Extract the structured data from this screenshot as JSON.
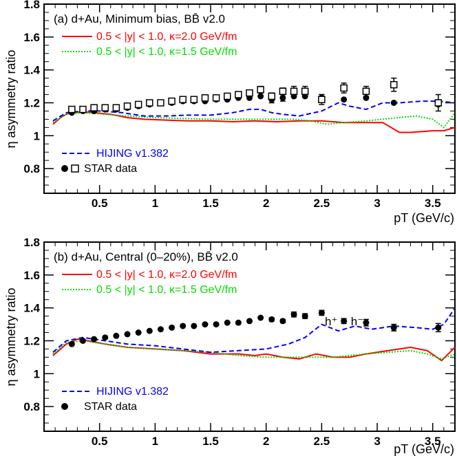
{
  "chart_data": [
    {
      "type": "scatter",
      "panel_title": "(a) d+Au, Minimum bias, BB̄ v2.0",
      "xlabel": "pT (GeV/c)",
      "ylabel": "η asymmetry ratio",
      "xlim": [
        0,
        3.7
      ],
      "ylim": [
        0.65,
        1.8
      ],
      "x_ticks": [
        "0.5",
        "1",
        "1.5",
        "2",
        "2.5",
        "3",
        "3.5"
      ],
      "y_ticks": [
        "0.8",
        "1",
        "1.2",
        "1.4",
        "1.6",
        "1.8"
      ],
      "annotation": "",
      "legend": [
        {
          "label": "0.5 < |y| < 1.0, κ=2.0 GeV/fm",
          "color": "#ff0000",
          "style": "solid"
        },
        {
          "label": "0.5 < |y| < 1.0, κ=1.5 GeV/fm",
          "color": "#00dd00",
          "style": "dotted"
        },
        {
          "label": "HIJING v1.382",
          "color": "#0000ff",
          "style": "dashed"
        },
        {
          "label": "STAR data",
          "color": "#000000",
          "style": "markers"
        }
      ],
      "series": [
        {
          "name": "0.5 < |y| < 1.0, κ=2.0 GeV/fm",
          "kind": "line",
          "color": "#ff0000",
          "style": "solid",
          "x": [
            0.08,
            0.15,
            0.2,
            0.25,
            0.35,
            0.45,
            0.6,
            0.75,
            0.9,
            1.1,
            1.3,
            1.5,
            1.7,
            1.9,
            2.1,
            2.3,
            2.5,
            2.7,
            2.9,
            3.05,
            3.2,
            3.3,
            3.5,
            3.6,
            3.7
          ],
          "y": [
            1.07,
            1.11,
            1.13,
            1.14,
            1.145,
            1.14,
            1.13,
            1.11,
            1.1,
            1.095,
            1.09,
            1.09,
            1.085,
            1.09,
            1.085,
            1.09,
            1.09,
            1.08,
            1.08,
            1.08,
            1.02,
            1.02,
            1.03,
            1.03,
            1.05
          ]
        },
        {
          "name": "0.5 < |y| < 1.0, κ=1.5 GeV/fm",
          "kind": "line",
          "color": "#00dd00",
          "style": "dotted",
          "x": [
            0.08,
            0.2,
            0.35,
            0.55,
            0.75,
            1.0,
            1.25,
            1.5,
            1.75,
            2.0,
            2.25,
            2.4,
            2.55,
            2.7,
            2.9,
            3.05,
            3.2,
            3.35,
            3.5,
            3.6,
            3.7
          ],
          "y": [
            1.08,
            1.13,
            1.14,
            1.13,
            1.12,
            1.11,
            1.105,
            1.1,
            1.1,
            1.1,
            1.1,
            1.09,
            1.07,
            1.08,
            1.09,
            1.1,
            1.11,
            1.12,
            1.1,
            1.05,
            1.14
          ]
        },
        {
          "name": "HIJING v1.382",
          "kind": "line",
          "color": "#0000ff",
          "style": "dashed",
          "x": [
            0.08,
            0.2,
            0.35,
            0.5,
            0.7,
            0.9,
            1.1,
            1.3,
            1.5,
            1.7,
            1.85,
            1.95,
            2.05,
            2.15,
            2.3,
            2.5,
            2.65,
            2.75,
            2.9,
            3.05,
            3.2,
            3.4,
            3.55,
            3.7
          ],
          "y": [
            1.09,
            1.14,
            1.15,
            1.15,
            1.14,
            1.12,
            1.12,
            1.125,
            1.125,
            1.14,
            1.16,
            1.16,
            1.14,
            1.13,
            1.12,
            1.15,
            1.2,
            1.18,
            1.16,
            1.2,
            1.2,
            1.21,
            1.21,
            1.2
          ]
        },
        {
          "name": "STAR data",
          "kind": "points",
          "marker": "filled-circle",
          "color": "#000000",
          "x": [
            0.25,
            0.35,
            0.45,
            0.55,
            0.65,
            0.75,
            0.85,
            0.95,
            1.05,
            1.15,
            1.25,
            1.35,
            1.45,
            1.55,
            1.65,
            1.75,
            1.85,
            1.95,
            2.05,
            2.15,
            2.25,
            2.35,
            2.5,
            2.7,
            2.9,
            3.15,
            3.55
          ],
          "y": [
            1.14,
            1.15,
            1.15,
            1.16,
            1.16,
            1.17,
            1.18,
            1.19,
            1.2,
            1.2,
            1.21,
            1.21,
            1.21,
            1.22,
            1.22,
            1.23,
            1.23,
            1.24,
            1.22,
            1.23,
            1.24,
            1.24,
            1.23,
            1.22,
            1.23,
            1.2,
            1.19
          ],
          "err": [
            0,
            0,
            0,
            0,
            0,
            0,
            0,
            0,
            0,
            0,
            0,
            0,
            0,
            0,
            0,
            0,
            0,
            0,
            0.02,
            0.02,
            0,
            0,
            0.02,
            0,
            0,
            0,
            0
          ]
        },
        {
          "name": "STAR data",
          "kind": "points",
          "marker": "open-square",
          "color": "#000000",
          "x": [
            0.25,
            0.35,
            0.45,
            0.55,
            0.65,
            0.75,
            0.85,
            0.95,
            1.05,
            1.15,
            1.25,
            1.35,
            1.45,
            1.55,
            1.65,
            1.75,
            1.85,
            1.95,
            2.05,
            2.15,
            2.25,
            2.35,
            2.5,
            2.7,
            2.9,
            3.15,
            3.55
          ],
          "y": [
            1.16,
            1.16,
            1.17,
            1.17,
            1.17,
            1.18,
            1.19,
            1.2,
            1.2,
            1.21,
            1.22,
            1.22,
            1.23,
            1.23,
            1.24,
            1.25,
            1.26,
            1.28,
            1.24,
            1.27,
            1.27,
            1.27,
            1.22,
            1.29,
            1.27,
            1.31,
            1.2
          ],
          "err": [
            0,
            0,
            0,
            0,
            0,
            0,
            0,
            0,
            0,
            0,
            0,
            0,
            0,
            0,
            0,
            0,
            0,
            0.02,
            0.02,
            0.02,
            0.03,
            0.03,
            0.03,
            0.03,
            0.03,
            0.04,
            0.05
          ]
        }
      ]
    },
    {
      "type": "scatter",
      "panel_title": "(b) d+Au, Central (0–20%), BB̄ v2.0",
      "xlabel": "pT (GeV/c)",
      "ylabel": "η asymmetry ratio",
      "xlim": [
        0,
        3.7
      ],
      "ylim": [
        0.65,
        1.8
      ],
      "x_ticks": [
        "0.5",
        "1",
        "1.5",
        "2",
        "2.5",
        "3",
        "3.5"
      ],
      "y_ticks": [
        "0.8",
        "1",
        "1.2",
        "1.4",
        "1.6",
        "1.8"
      ],
      "annotation": "h⁺ + h⁻",
      "legend": [
        {
          "label": "0.5 < |y| < 1.0, κ=2.0 GeV/fm",
          "color": "#ff0000",
          "style": "solid"
        },
        {
          "label": "0.5 < |y| < 1.0, κ=1.5 GeV/fm",
          "color": "#00dd00",
          "style": "dotted"
        },
        {
          "label": "HIJING v1.382",
          "color": "#0000ff",
          "style": "dashed"
        },
        {
          "label": "STAR data",
          "color": "#000000",
          "style": "markers"
        }
      ],
      "series": [
        {
          "name": "0.5 < |y| < 1.0, κ=2.0 GeV/fm",
          "kind": "line",
          "color": "#ff0000",
          "style": "solid",
          "x": [
            0.08,
            0.2,
            0.3,
            0.4,
            0.55,
            0.75,
            1.0,
            1.25,
            1.5,
            1.75,
            1.9,
            2.0,
            2.15,
            2.3,
            2.45,
            2.6,
            2.75,
            2.9,
            3.1,
            3.3,
            3.45,
            3.58,
            3.7
          ],
          "y": [
            1.11,
            1.18,
            1.21,
            1.2,
            1.18,
            1.16,
            1.15,
            1.14,
            1.12,
            1.12,
            1.11,
            1.12,
            1.1,
            1.09,
            1.12,
            1.1,
            1.1,
            1.12,
            1.14,
            1.16,
            1.14,
            1.08,
            1.16
          ]
        },
        {
          "name": "0.5 < |y| < 1.0, κ=1.5 GeV/fm",
          "kind": "line",
          "color": "#00dd00",
          "style": "dotted",
          "x": [
            0.08,
            0.2,
            0.35,
            0.55,
            0.75,
            1.0,
            1.25,
            1.5,
            1.75,
            2.0,
            2.3,
            2.6,
            2.9,
            3.1,
            3.3,
            3.45,
            3.58,
            3.7
          ],
          "y": [
            1.12,
            1.19,
            1.2,
            1.18,
            1.16,
            1.15,
            1.14,
            1.13,
            1.11,
            1.1,
            1.1,
            1.1,
            1.12,
            1.13,
            1.14,
            1.12,
            1.09,
            1.12
          ]
        },
        {
          "name": "HIJING v1.382",
          "kind": "line",
          "color": "#0000ff",
          "style": "dashed",
          "x": [
            0.08,
            0.2,
            0.35,
            0.55,
            0.75,
            1.0,
            1.25,
            1.5,
            1.75,
            2.0,
            2.2,
            2.35,
            2.5,
            2.65,
            2.8,
            2.95,
            3.15,
            3.35,
            3.5,
            3.6,
            3.7
          ],
          "y": [
            1.13,
            1.2,
            1.22,
            1.2,
            1.18,
            1.17,
            1.15,
            1.13,
            1.14,
            1.15,
            1.18,
            1.22,
            1.3,
            1.26,
            1.29,
            1.27,
            1.29,
            1.28,
            1.27,
            1.3,
            1.4
          ]
        },
        {
          "name": "STAR data",
          "kind": "points",
          "marker": "filled-circle",
          "color": "#000000",
          "x": [
            0.25,
            0.35,
            0.45,
            0.55,
            0.65,
            0.75,
            0.85,
            0.95,
            1.05,
            1.15,
            1.25,
            1.35,
            1.45,
            1.55,
            1.65,
            1.75,
            1.85,
            1.95,
            2.05,
            2.15,
            2.25,
            2.35,
            2.5,
            2.7,
            2.9,
            3.15,
            3.55
          ],
          "y": [
            1.18,
            1.2,
            1.21,
            1.22,
            1.23,
            1.24,
            1.25,
            1.26,
            1.27,
            1.28,
            1.29,
            1.29,
            1.3,
            1.3,
            1.31,
            1.31,
            1.32,
            1.34,
            1.33,
            1.32,
            1.36,
            1.35,
            1.37,
            1.32,
            1.31,
            1.28,
            1.28
          ],
          "err": [
            0,
            0,
            0,
            0,
            0,
            0,
            0,
            0,
            0,
            0,
            0,
            0,
            0,
            0,
            0,
            0,
            0,
            0,
            0.01,
            0.01,
            0.015,
            0.015,
            0.015,
            0.015,
            0.02,
            0.02,
            0.025
          ]
        }
      ]
    }
  ]
}
